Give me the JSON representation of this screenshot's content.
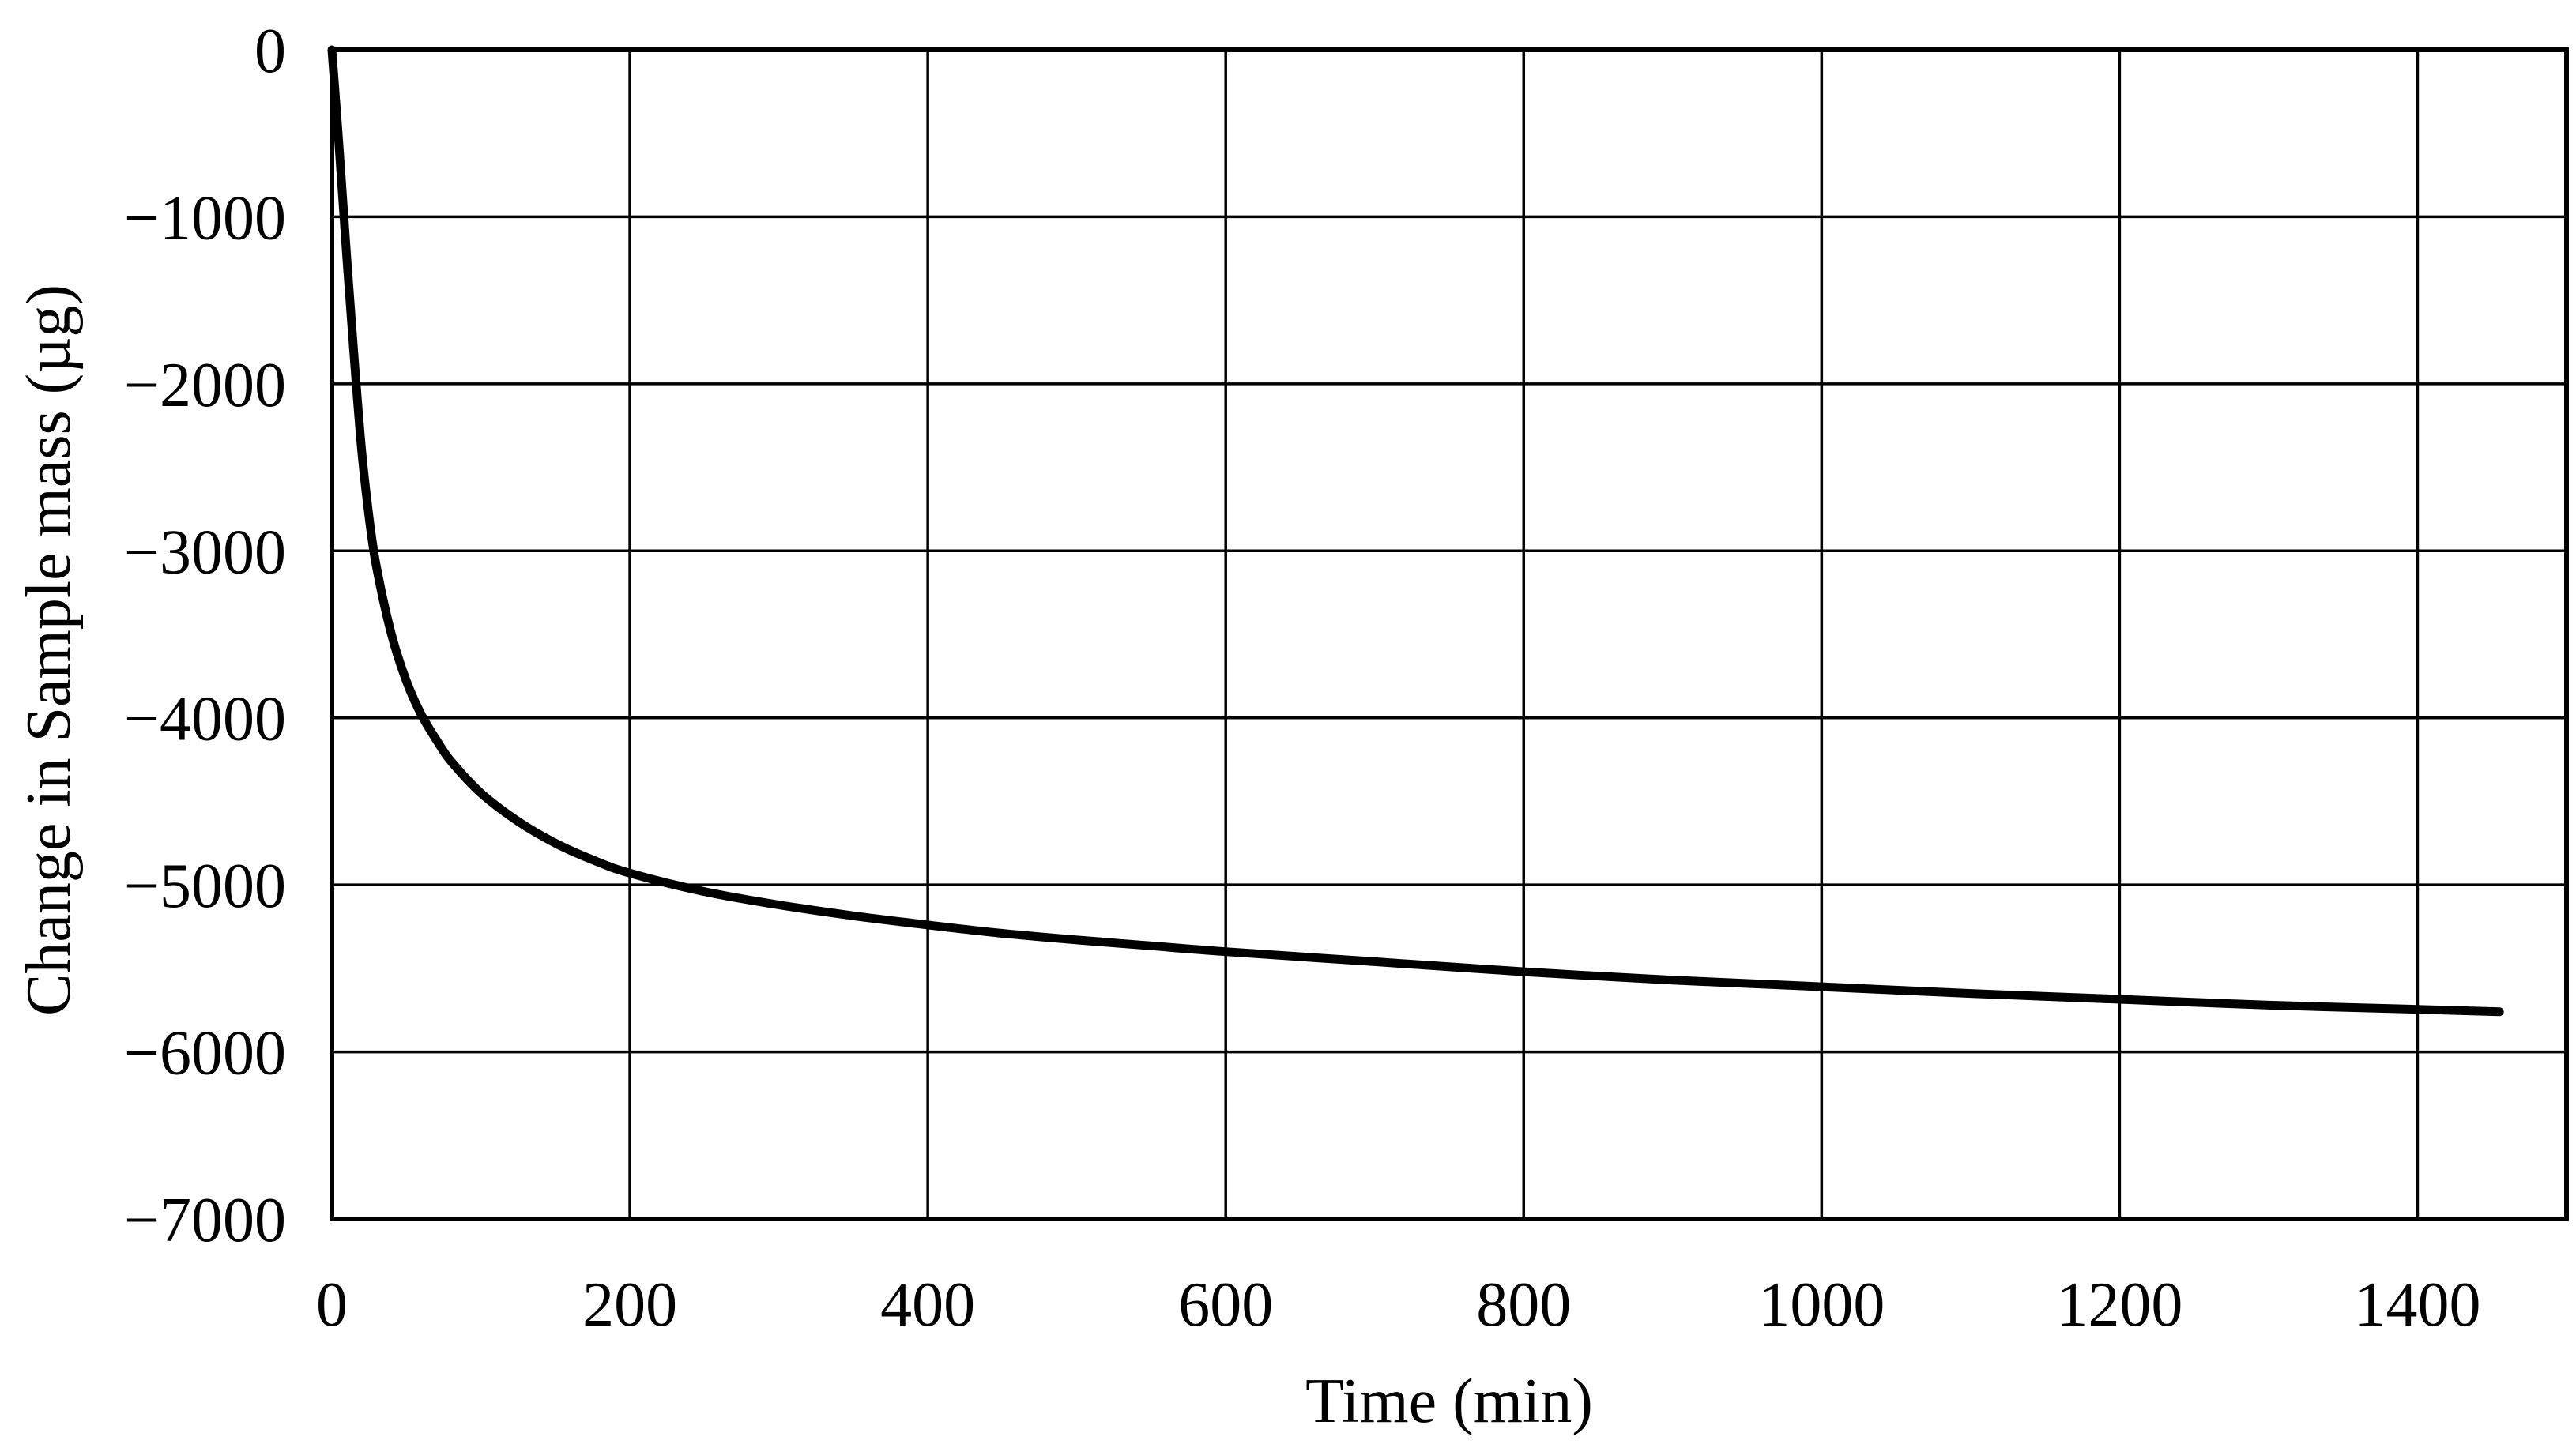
{
  "chart_data": {
    "type": "line",
    "title": "",
    "xlabel": "Time (min)",
    "ylabel": "Change in Sample mass (µg)",
    "xlim": [
      0,
      1500
    ],
    "ylim": [
      -7000,
      0
    ],
    "x_ticks": [
      0,
      200,
      400,
      600,
      800,
      1000,
      1200,
      1400
    ],
    "x_tick_labels": [
      "0",
      "200",
      "400",
      "600",
      "800",
      "1000",
      "1200",
      "1400"
    ],
    "y_ticks": [
      0,
      -1000,
      -2000,
      -3000,
      -4000,
      -5000,
      -6000,
      -7000
    ],
    "y_tick_labels": [
      "0",
      "−1000",
      "−2000",
      "−3000",
      "−4000",
      "−5000",
      "−6000",
      "−7000"
    ],
    "grid": true,
    "legend": "none",
    "series": [
      {
        "color": "#000000",
        "x": [
          0,
          5,
          10,
          15,
          20,
          25,
          30,
          40,
          50,
          60,
          70,
          80,
          100,
          125,
          150,
          175,
          200,
          250,
          300,
          350,
          400,
          450,
          500,
          550,
          600,
          700,
          800,
          900,
          1000,
          1100,
          1200,
          1300,
          1400,
          1455
        ],
        "y": [
          0,
          -600,
          -1250,
          -1850,
          -2400,
          -2800,
          -3100,
          -3500,
          -3780,
          -3980,
          -4130,
          -4260,
          -4450,
          -4620,
          -4750,
          -4850,
          -4930,
          -5040,
          -5120,
          -5185,
          -5240,
          -5290,
          -5330,
          -5365,
          -5400,
          -5460,
          -5520,
          -5570,
          -5610,
          -5650,
          -5685,
          -5720,
          -5745,
          -5760
        ]
      }
    ]
  }
}
